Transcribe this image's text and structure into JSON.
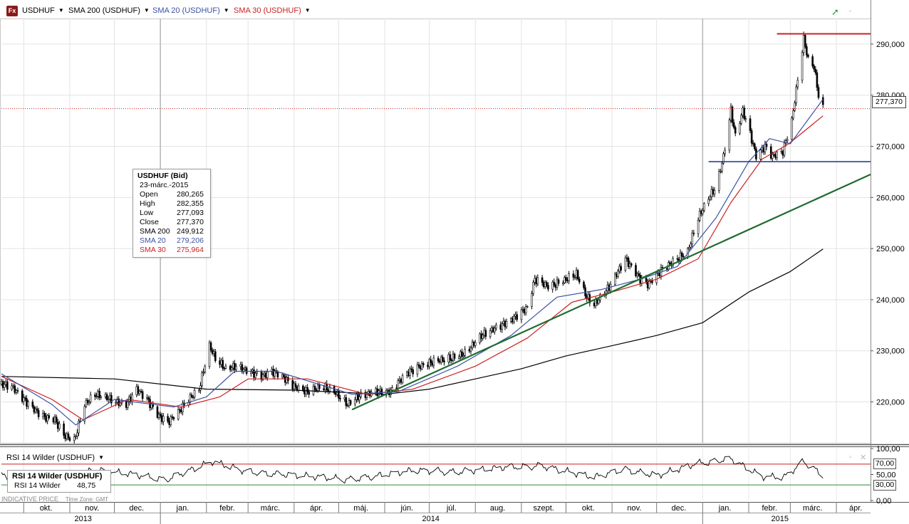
{
  "header": {
    "logo": "Fx",
    "symbol": "USDHUF",
    "indicators": [
      {
        "label": "SMA 200 (USDHUF)",
        "color": "#000000"
      },
      {
        "label": "SMA 20 (USDHUF)",
        "color": "#3b51a3"
      },
      {
        "label": "SMA 30 (USDHUF)",
        "color": "#cc2020"
      }
    ]
  },
  "tooltip": {
    "title": "USDHUF (Bid)",
    "date": "23-márc.-2015",
    "rows": [
      {
        "k": "Open",
        "v": "280,265"
      },
      {
        "k": "High",
        "v": "282,355"
      },
      {
        "k": "Low",
        "v": "277,093"
      },
      {
        "k": "Close",
        "v": "277,370"
      },
      {
        "k": "SMA 200",
        "v": "249,912"
      },
      {
        "k": "SMA 20",
        "v": "279,206"
      },
      {
        "k": "SMA 30",
        "v": "275,964"
      }
    ]
  },
  "last_price": "277,370",
  "rsi_panel": {
    "header": "RSI 14 Wilder (USDHUF)",
    "box_title": "RSI 14 Wilder (USDHUF)",
    "box_label": "RSI 14 Wilder",
    "box_value": "48,75",
    "levels": [
      "70,00",
      "30,00"
    ],
    "ticks": [
      "100,00",
      "50,00",
      "0,00"
    ]
  },
  "footer": {
    "indicative": "INDICATIVE PRICE",
    "timezone": "Time Zone: GMT",
    "months": [
      "okt.",
      "nov.",
      "dec.",
      "jan.",
      "febr.",
      "márc.",
      "ápr.",
      "máj.",
      "jún.",
      "júl.",
      "aug.",
      "szept.",
      "okt.",
      "nov.",
      "dec.",
      "jan.",
      "febr.",
      "márc.",
      "ápr."
    ],
    "years": [
      "2013",
      "2014",
      "2015"
    ]
  },
  "colors": {
    "sma200": "#000000",
    "sma20": "#3b51a3",
    "sma30": "#cc2020",
    "trendline": "#1e6b30",
    "resistance": "#cc2020",
    "support": "#2a3fa8",
    "candle": "#000000"
  },
  "chart_data": {
    "type": "candlestick",
    "symbol": "USDHUF",
    "y_ticks": [
      "220,000",
      "230,000",
      "240,000",
      "250,000",
      "260,000",
      "270,000",
      "280,000",
      "290,000"
    ],
    "ylim": [
      212,
      295
    ],
    "x_range": [
      "2013-09-16",
      "2015-04-24"
    ],
    "last_close": 277.37,
    "price_path": [
      [
        "2013-09-16",
        223.5
      ],
      [
        "2013-09-23",
        223.0
      ],
      [
        "2013-10-01",
        220.5
      ],
      [
        "2013-10-08",
        218.5
      ],
      [
        "2013-10-15",
        217.0
      ],
      [
        "2013-10-22",
        216.5
      ],
      [
        "2013-10-28",
        213.5
      ],
      [
        "2013-11-04",
        212.5
      ],
      [
        "2013-11-11",
        219.5
      ],
      [
        "2013-11-18",
        221.5
      ],
      [
        "2013-11-25",
        221.0
      ],
      [
        "2013-12-02",
        220.0
      ],
      [
        "2013-12-09",
        219.5
      ],
      [
        "2013-12-16",
        222.5
      ],
      [
        "2013-12-23",
        220.5
      ],
      [
        "2013-12-30",
        217.5
      ],
      [
        "2014-01-06",
        216.0
      ],
      [
        "2014-01-13",
        218.0
      ],
      [
        "2014-01-20",
        220.5
      ],
      [
        "2014-01-27",
        222.5
      ],
      [
        "2014-02-03",
        231.0
      ],
      [
        "2014-02-07",
        228.5
      ],
      [
        "2014-02-14",
        226.5
      ],
      [
        "2014-02-21",
        227.0
      ],
      [
        "2014-03-01",
        226.0
      ],
      [
        "2014-03-10",
        225.0
      ],
      [
        "2014-03-17",
        226.0
      ],
      [
        "2014-03-24",
        225.0
      ],
      [
        "2014-04-01",
        223.0
      ],
      [
        "2014-04-10",
        222.0
      ],
      [
        "2014-04-20",
        223.0
      ],
      [
        "2014-04-28",
        222.0
      ],
      [
        "2014-05-07",
        219.5
      ],
      [
        "2014-05-14",
        221.0
      ],
      [
        "2014-05-25",
        222.0
      ],
      [
        "2014-06-05",
        222.0
      ],
      [
        "2014-06-15",
        225.5
      ],
      [
        "2014-06-25",
        227.0
      ],
      [
        "2014-07-05",
        228.0
      ],
      [
        "2014-07-15",
        228.5
      ],
      [
        "2014-07-25",
        229.5
      ],
      [
        "2014-08-05",
        233.0
      ],
      [
        "2014-08-15",
        234.5
      ],
      [
        "2014-08-25",
        236.0
      ],
      [
        "2014-09-05",
        238.5
      ],
      [
        "2014-09-10",
        244.0
      ],
      [
        "2014-09-20",
        242.5
      ],
      [
        "2014-10-01",
        244.0
      ],
      [
        "2014-10-08",
        245.0
      ],
      [
        "2014-10-15",
        240.5
      ],
      [
        "2014-10-20",
        239.0
      ],
      [
        "2014-10-30",
        242.5
      ],
      [
        "2014-11-10",
        248.0
      ],
      [
        "2014-11-20",
        244.0
      ],
      [
        "2014-11-25",
        243.0
      ],
      [
        "2014-12-05",
        246.0
      ],
      [
        "2014-12-15",
        248.0
      ],
      [
        "2014-12-22",
        249.5
      ],
      [
        "2014-12-29",
        256.0
      ],
      [
        "2015-01-05",
        260.0
      ],
      [
        "2015-01-10",
        262.0
      ],
      [
        "2015-01-15",
        268.0
      ],
      [
        "2015-01-20",
        277.0
      ],
      [
        "2015-01-23",
        272.0
      ],
      [
        "2015-01-28",
        277.0
      ],
      [
        "2015-02-02",
        272.5
      ],
      [
        "2015-02-06",
        268.0
      ],
      [
        "2015-02-12",
        270.0
      ],
      [
        "2015-02-17",
        268.0
      ],
      [
        "2015-02-24",
        269.0
      ],
      [
        "2015-03-02",
        275.0
      ],
      [
        "2015-03-06",
        283.0
      ],
      [
        "2015-03-10",
        291.0
      ],
      [
        "2015-03-13",
        287.0
      ],
      [
        "2015-03-17",
        285.5
      ],
      [
        "2015-03-20",
        280.0
      ],
      [
        "2015-03-23",
        277.37
      ]
    ],
    "sma200": [
      [
        "2013-09-16",
        225.0
      ],
      [
        "2013-12-01",
        224.5
      ],
      [
        "2014-02-01",
        222.5
      ],
      [
        "2014-04-01",
        222.3
      ],
      [
        "2014-06-01",
        221.5
      ],
      [
        "2014-07-01",
        222.5
      ],
      [
        "2014-08-01",
        224.5
      ],
      [
        "2014-09-01",
        226.5
      ],
      [
        "2014-10-01",
        229.0
      ],
      [
        "2014-11-01",
        231.0
      ],
      [
        "2014-12-01",
        233.0
      ],
      [
        "2015-01-01",
        235.5
      ],
      [
        "2015-02-01",
        241.5
      ],
      [
        "2015-03-01",
        245.5
      ],
      [
        "2015-03-23",
        249.912
      ]
    ],
    "sma20": [
      [
        "2013-09-16",
        225.5
      ],
      [
        "2013-10-20",
        219.5
      ],
      [
        "2013-11-05",
        215.5
      ],
      [
        "2013-12-01",
        220.5
      ],
      [
        "2014-01-10",
        219.0
      ],
      [
        "2014-02-01",
        221.0
      ],
      [
        "2014-02-20",
        226.0
      ],
      [
        "2014-03-20",
        226.0
      ],
      [
        "2014-05-10",
        221.5
      ],
      [
        "2014-06-10",
        222.0
      ],
      [
        "2014-07-20",
        227.0
      ],
      [
        "2014-08-25",
        233.0
      ],
      [
        "2014-09-25",
        240.5
      ],
      [
        "2014-10-25",
        242.0
      ],
      [
        "2014-11-20",
        244.0
      ],
      [
        "2014-12-15",
        246.5
      ],
      [
        "2015-01-10",
        256.0
      ],
      [
        "2015-02-01",
        267.0
      ],
      [
        "2015-02-15",
        271.5
      ],
      [
        "2015-03-01",
        270.5
      ],
      [
        "2015-03-23",
        279.206
      ]
    ],
    "sma30": [
      [
        "2013-09-16",
        225.0
      ],
      [
        "2013-10-20",
        220.5
      ],
      [
        "2013-11-10",
        216.5
      ],
      [
        "2013-12-10",
        220.5
      ],
      [
        "2014-01-15",
        219.0
      ],
      [
        "2014-02-10",
        221.0
      ],
      [
        "2014-03-01",
        224.5
      ],
      [
        "2014-04-10",
        224.5
      ],
      [
        "2014-05-20",
        221.5
      ],
      [
        "2014-06-20",
        222.5
      ],
      [
        "2014-08-01",
        227.0
      ],
      [
        "2014-09-05",
        232.5
      ],
      [
        "2014-10-05",
        239.5
      ],
      [
        "2014-11-01",
        241.5
      ],
      [
        "2014-12-01",
        244.0
      ],
      [
        "2014-12-29",
        248.0
      ],
      [
        "2015-01-20",
        259.0
      ],
      [
        "2015-02-10",
        267.5
      ],
      [
        "2015-02-28",
        270.5
      ],
      [
        "2015-03-23",
        275.964
      ]
    ],
    "rsi": [
      [
        "2013-09-16",
        48
      ],
      [
        "2013-10-05",
        42
      ],
      [
        "2013-11-01",
        32
      ],
      [
        "2013-11-15",
        58
      ],
      [
        "2013-12-10",
        52
      ],
      [
        "2014-01-05",
        40
      ],
      [
        "2014-02-05",
        75
      ],
      [
        "2014-03-01",
        55
      ],
      [
        "2014-04-15",
        46
      ],
      [
        "2014-05-10",
        40
      ],
      [
        "2014-06-20",
        58
      ],
      [
        "2014-07-20",
        55
      ],
      [
        "2014-08-25",
        65
      ],
      [
        "2014-09-15",
        66
      ],
      [
        "2014-10-20",
        45
      ],
      [
        "2014-11-10",
        60
      ],
      [
        "2014-12-01",
        48
      ],
      [
        "2014-12-29",
        72
      ],
      [
        "2015-01-20",
        80
      ],
      [
        "2015-02-10",
        46
      ],
      [
        "2015-02-25",
        45
      ],
      [
        "2015-03-10",
        75
      ],
      [
        "2015-03-23",
        48.75
      ]
    ],
    "annotations": {
      "resistance_line": 292.0,
      "support_line": 267.0,
      "trendline": [
        [
          "2014-05-10",
          218.5
        ],
        [
          "2015-04-24",
          264.5
        ]
      ]
    }
  }
}
